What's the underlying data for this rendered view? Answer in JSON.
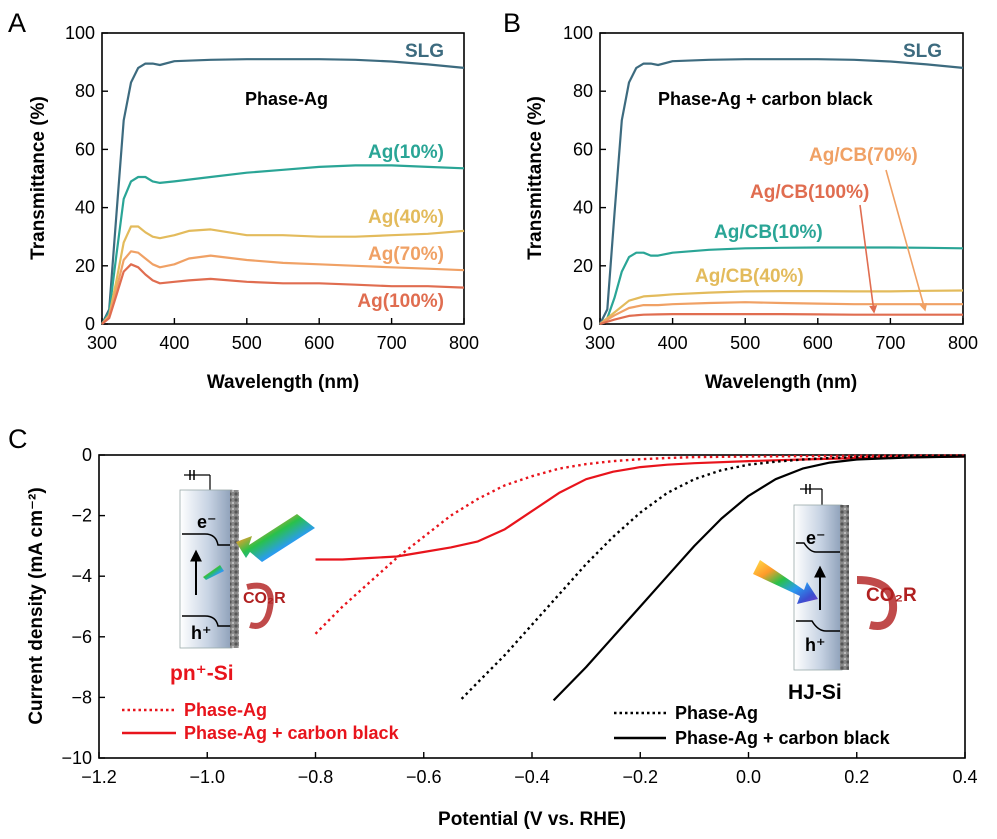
{
  "chart_data": [
    {
      "panel": "A",
      "type": "line",
      "xlabel": "Wavelength (nm)",
      "ylabel": "Transmittance (%)",
      "xlim": [
        300,
        800
      ],
      "ylim": [
        0,
        100
      ],
      "xticks": [
        300,
        400,
        500,
        600,
        700,
        800
      ],
      "yticks": [
        0,
        20,
        40,
        60,
        80,
        100
      ],
      "annotation": "Phase-Ag",
      "series": [
        {
          "name": "SLG",
          "color": "#3d6b7f",
          "x": [
            300,
            310,
            320,
            330,
            340,
            350,
            360,
            370,
            380,
            400,
            450,
            500,
            550,
            600,
            650,
            700,
            750,
            800
          ],
          "y": [
            0,
            5,
            38,
            70,
            83,
            88,
            89.5,
            89.5,
            89,
            90.3,
            90.8,
            91,
            91,
            91,
            90.8,
            90.2,
            89.2,
            88
          ]
        },
        {
          "name": "Ag(10%)",
          "color": "#2aa596",
          "x": [
            300,
            310,
            320,
            330,
            340,
            350,
            360,
            370,
            380,
            400,
            450,
            500,
            550,
            600,
            650,
            700,
            750,
            800
          ],
          "y": [
            0,
            4,
            24,
            43,
            49,
            50.5,
            50.5,
            49,
            48.5,
            49,
            50.5,
            52,
            53,
            54,
            54.5,
            54.5,
            54,
            53.5
          ]
        },
        {
          "name": "Ag(40%)",
          "color": "#e3bb5c",
          "x": [
            300,
            310,
            320,
            330,
            340,
            350,
            360,
            370,
            380,
            400,
            420,
            450,
            500,
            550,
            600,
            650,
            700,
            750,
            800
          ],
          "y": [
            0,
            3,
            15,
            28,
            33.5,
            33.5,
            31.5,
            30,
            29.5,
            30.5,
            32,
            32.5,
            30.5,
            30.5,
            30,
            30,
            30.5,
            31,
            32
          ]
        },
        {
          "name": "Ag(70%)",
          "color": "#f0a165",
          "x": [
            300,
            310,
            320,
            330,
            340,
            350,
            360,
            370,
            380,
            400,
            420,
            450,
            500,
            550,
            600,
            650,
            700,
            750,
            800
          ],
          "y": [
            0,
            3,
            12,
            22,
            25,
            24.5,
            22.5,
            20.5,
            19.5,
            20.5,
            22.5,
            23.5,
            22,
            21,
            20.5,
            20,
            19.5,
            19,
            18.5
          ]
        },
        {
          "name": "Ag(100%)",
          "color": "#e06d50",
          "x": [
            300,
            310,
            320,
            330,
            340,
            350,
            360,
            370,
            380,
            400,
            420,
            450,
            500,
            550,
            600,
            650,
            700,
            750,
            800
          ],
          "y": [
            0,
            2,
            10,
            18,
            20.5,
            19.5,
            17,
            15,
            14,
            14.5,
            15,
            15.5,
            14.5,
            14,
            14,
            13.5,
            13,
            13,
            12.5
          ]
        }
      ]
    },
    {
      "panel": "B",
      "type": "line",
      "xlabel": "Wavelength (nm)",
      "ylabel": "Transmittance (%)",
      "xlim": [
        300,
        800
      ],
      "ylim": [
        0,
        100
      ],
      "xticks": [
        300,
        400,
        500,
        600,
        700,
        800
      ],
      "yticks": [
        0,
        20,
        40,
        60,
        80,
        100
      ],
      "annotation": "Phase-Ag + carbon black",
      "series": [
        {
          "name": "SLG",
          "color": "#3d6b7f",
          "x": [
            300,
            310,
            320,
            330,
            340,
            350,
            360,
            370,
            380,
            400,
            450,
            500,
            550,
            600,
            650,
            700,
            750,
            800
          ],
          "y": [
            0,
            5,
            38,
            70,
            83,
            88,
            89.5,
            89.5,
            89,
            90.3,
            90.8,
            91,
            91,
            91,
            90.8,
            90.2,
            89.2,
            88
          ]
        },
        {
          "name": "Ag/CB(10%)",
          "color": "#2aa596",
          "x": [
            300,
            310,
            320,
            330,
            340,
            350,
            360,
            370,
            380,
            400,
            450,
            500,
            550,
            600,
            650,
            700,
            750,
            800
          ],
          "y": [
            0,
            2,
            9,
            18,
            23,
            24.5,
            24.5,
            23.5,
            23.5,
            24.5,
            25.5,
            26,
            26.2,
            26.3,
            26.3,
            26.3,
            26.2,
            26
          ]
        },
        {
          "name": "Ag/CB(40%)",
          "color": "#e3bb5c",
          "x": [
            300,
            320,
            340,
            360,
            380,
            400,
            450,
            500,
            550,
            600,
            650,
            700,
            750,
            800
          ],
          "y": [
            0,
            4,
            8,
            9.5,
            9.8,
            10.2,
            10.8,
            11.2,
            11.3,
            11.3,
            11.2,
            11.2,
            11.4,
            11.5
          ]
        },
        {
          "name": "Ag/CB(70%)",
          "color": "#f0a165",
          "x": [
            300,
            320,
            340,
            360,
            380,
            400,
            450,
            500,
            550,
            600,
            650,
            700,
            750,
            800
          ],
          "y": [
            0,
            3,
            5.5,
            6.5,
            6.5,
            6.8,
            7.2,
            7.5,
            7.2,
            7,
            6.8,
            6.8,
            6.8,
            6.8
          ]
        },
        {
          "name": "Ag/CB(100%)",
          "color": "#e06d50",
          "x": [
            300,
            320,
            340,
            360,
            380,
            400,
            450,
            500,
            550,
            600,
            650,
            700,
            750,
            800
          ],
          "y": [
            0,
            1.5,
            2.8,
            3.2,
            3.3,
            3.4,
            3.4,
            3.4,
            3.4,
            3.3,
            3.2,
            3.2,
            3.2,
            3.2
          ]
        }
      ]
    },
    {
      "panel": "C",
      "type": "line",
      "xlabel": "Potential (V vs. RHE)",
      "ylabel": "Current density (mA cm⁻²)",
      "xlim": [
        -1.2,
        0.4
      ],
      "ylim": [
        -10,
        0
      ],
      "xticks": [
        -1.2,
        -1.0,
        -0.8,
        -0.6,
        -0.4,
        -0.2,
        0.0,
        0.2,
        0.4
      ],
      "xtick_labels": [
        "−1.2",
        "−1.0",
        "−0.8",
        "−0.6",
        "−0.4",
        "−0.2",
        "0.0",
        "0.2",
        "0.4"
      ],
      "yticks": [
        -10,
        -8,
        -6,
        -4,
        -2,
        0
      ],
      "ytick_labels": [
        "−10",
        "−8",
        "−6",
        "−4",
        "−2",
        "0"
      ],
      "series": [
        {
          "name": "pn⁺-Si Phase-Ag",
          "color": "#e8141c",
          "style": "dotted",
          "x": [
            -0.8,
            -0.75,
            -0.7,
            -0.65,
            -0.6,
            -0.55,
            -0.5,
            -0.45,
            -0.4,
            -0.35,
            -0.3,
            -0.25,
            -0.2,
            -0.15,
            -0.1,
            0.0,
            0.1,
            0.2,
            0.4
          ],
          "y": [
            -5.9,
            -5.0,
            -4.2,
            -3.4,
            -2.7,
            -2.0,
            -1.45,
            -1.0,
            -0.7,
            -0.45,
            -0.3,
            -0.2,
            -0.14,
            -0.1,
            -0.07,
            -0.05,
            -0.04,
            -0.03,
            -0.02
          ]
        },
        {
          "name": "pn⁺-Si Phase-Ag + carbon black",
          "color": "#e8141c",
          "style": "solid",
          "x": [
            -0.8,
            -0.75,
            -0.7,
            -0.65,
            -0.6,
            -0.55,
            -0.5,
            -0.45,
            -0.4,
            -0.35,
            -0.3,
            -0.25,
            -0.2,
            -0.15,
            -0.1,
            0.0,
            0.1,
            0.2,
            0.4
          ],
          "y": [
            -3.45,
            -3.45,
            -3.4,
            -3.35,
            -3.2,
            -3.05,
            -2.85,
            -2.45,
            -1.85,
            -1.25,
            -0.8,
            -0.55,
            -0.4,
            -0.32,
            -0.27,
            -0.2,
            -0.15,
            -0.1,
            -0.05
          ]
        },
        {
          "name": "HJ-Si Phase-Ag",
          "color": "#000000",
          "style": "dotted",
          "x": [
            -0.53,
            -0.5,
            -0.45,
            -0.4,
            -0.35,
            -0.3,
            -0.25,
            -0.2,
            -0.15,
            -0.1,
            -0.05,
            0.0,
            0.05,
            0.1,
            0.15,
            0.2,
            0.3,
            0.4
          ],
          "y": [
            -8.05,
            -7.5,
            -6.6,
            -5.6,
            -4.6,
            -3.6,
            -2.7,
            -1.9,
            -1.25,
            -0.8,
            -0.5,
            -0.32,
            -0.22,
            -0.15,
            -0.1,
            -0.07,
            -0.04,
            -0.02
          ]
        },
        {
          "name": "HJ-Si Phase-Ag + carbon black",
          "color": "#000000",
          "style": "solid",
          "x": [
            -0.36,
            -0.3,
            -0.25,
            -0.2,
            -0.15,
            -0.1,
            -0.05,
            0.0,
            0.05,
            0.1,
            0.15,
            0.2,
            0.3,
            0.4
          ],
          "y": [
            -8.1,
            -7.0,
            -6.0,
            -5.0,
            -4.0,
            -3.0,
            -2.1,
            -1.35,
            -0.8,
            -0.45,
            -0.25,
            -0.15,
            -0.08,
            -0.05
          ]
        }
      ],
      "inset_labels": {
        "left_device": "pn⁺-Si",
        "right_device": "HJ-Si",
        "electron": "e⁻",
        "hole": "h⁺",
        "product": "CO₂R"
      },
      "legend": {
        "left": [
          {
            "label": "Phase-Ag",
            "style": "dotted",
            "color": "#e8141c"
          },
          {
            "label": "Phase-Ag + carbon black",
            "style": "solid",
            "color": "#e8141c"
          }
        ],
        "right": [
          {
            "label": "Phase-Ag",
            "style": "dotted",
            "color": "#000000"
          },
          {
            "label": "Phase-Ag + carbon black",
            "style": "solid",
            "color": "#000000"
          }
        ]
      }
    }
  ],
  "panel_letters": {
    "a": "A",
    "b": "B",
    "c": "C"
  },
  "annotations": {
    "a": "Phase-Ag",
    "b": "Phase-Ag + carbon black"
  },
  "labels": {
    "a": [
      "SLG",
      "Ag(10%)",
      "Ag(40%)",
      "Ag(70%)",
      "Ag(100%)"
    ],
    "b": [
      "SLG",
      "Ag/CB(70%)",
      "Ag/CB(100%)",
      "Ag/CB(10%)",
      "Ag/CB(40%)"
    ]
  },
  "colors": {
    "slg": "#3d6b7f",
    "teal": "#2aa596",
    "yellow": "#e3bb5c",
    "orange": "#f0a165",
    "red_orange": "#e06d50",
    "red": "#e8141c",
    "black": "#000000"
  }
}
